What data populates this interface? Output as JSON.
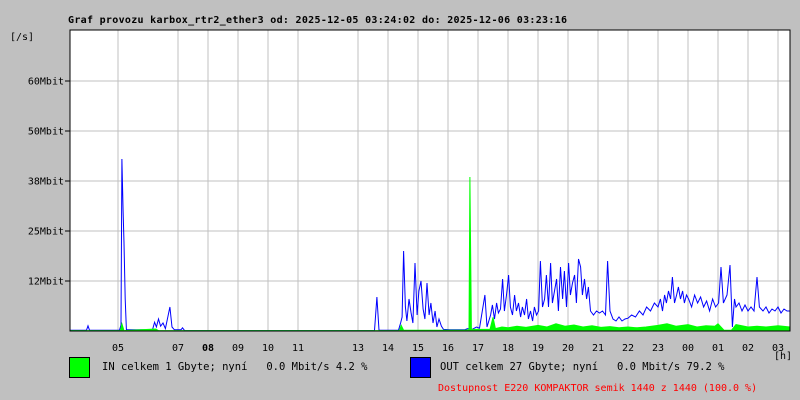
{
  "header": {
    "title": "Graf provozu karbox_rtr2_ether3 od: 2025-12-05 03:24:02 do: 2025-12-06 03:23:16"
  },
  "axes": {
    "y_unit": "[/s]",
    "x_unit": "[h]"
  },
  "legend": {
    "in": {
      "label": "IN celkem 1 Gbyte; nyní   0.0 Mbit/s 4.2 %",
      "color": "#00ff00"
    },
    "out": {
      "label": "OUT celkem 27 Gbyte; nyní   0.0 Mbit/s 79.2 %",
      "color": "#0000ff"
    },
    "availability": {
      "label": "Dostupnost E220 KOMPAKTOR semik 1440 z 1440 (100.0 %)",
      "color": "#ff0000"
    }
  },
  "colors": {
    "background": "#c0c0c0",
    "plot_background": "#ffffff",
    "grid": "#c0c0c0",
    "border": "#000000",
    "in_series": "#00ff00",
    "out_series": "#0000ff",
    "availability_text": "#ff0000",
    "text": "#000000"
  },
  "chart_data": {
    "type": "line",
    "title": "Graf provozu karbox_rtr2_ether3 od: 2025-12-05 03:24:02 do: 2025-12-06 03:23:16",
    "xlabel": "[h]",
    "ylabel": "[/s]",
    "grid": true,
    "x_range_hours": [
      3.4,
      27.39
    ],
    "ylim": [
      0,
      75.25
    ],
    "y_ticks": [
      {
        "label": "12Mbit",
        "mbit": 12.5
      },
      {
        "label": "25Mbit",
        "mbit": 25
      },
      {
        "label": "38Mbit",
        "mbit": 37.5
      },
      {
        "label": "50Mbit",
        "mbit": 50
      },
      {
        "label": "60Mbit",
        "mbit": 62.5
      }
    ],
    "x_ticks": [
      {
        "label": "05",
        "hour": 5
      },
      {
        "label": "07",
        "hour": 7
      },
      {
        "label": "08",
        "hour": 8,
        "bold": true
      },
      {
        "label": "09",
        "hour": 9
      },
      {
        "label": "10",
        "hour": 10
      },
      {
        "label": "11",
        "hour": 11
      },
      {
        "label": "13",
        "hour": 13
      },
      {
        "label": "14",
        "hour": 14
      },
      {
        "label": "15",
        "hour": 15
      },
      {
        "label": "16",
        "hour": 16
      },
      {
        "label": "17",
        "hour": 17
      },
      {
        "label": "18",
        "hour": 18
      },
      {
        "label": "19",
        "hour": 19
      },
      {
        "label": "20",
        "hour": 20
      },
      {
        "label": "21",
        "hour": 21
      },
      {
        "label": "22",
        "hour": 22
      },
      {
        "label": "23",
        "hour": 23
      },
      {
        "label": "00",
        "hour": 24
      },
      {
        "label": "01",
        "hour": 25
      },
      {
        "label": "02",
        "hour": 26
      },
      {
        "label": "03",
        "hour": 27
      }
    ],
    "series": [
      {
        "name": "OUT",
        "color": "#0000ff",
        "style": "line",
        "unit": "Mbit/s",
        "points": [
          [
            3.4,
            0.2
          ],
          [
            3.95,
            0.2
          ],
          [
            4.0,
            1.3
          ],
          [
            4.05,
            0.2
          ],
          [
            5.05,
            0.2
          ],
          [
            5.1,
            1.5
          ],
          [
            5.13,
            43
          ],
          [
            5.17,
            30
          ],
          [
            5.2,
            22
          ],
          [
            5.24,
            8
          ],
          [
            5.28,
            0.3
          ],
          [
            6.15,
            0.3
          ],
          [
            6.22,
            2.2
          ],
          [
            6.28,
            1.0
          ],
          [
            6.35,
            3.0
          ],
          [
            6.42,
            1.2
          ],
          [
            6.5,
            2.0
          ],
          [
            6.58,
            0.6
          ],
          [
            6.73,
            6.0
          ],
          [
            6.8,
            1.0
          ],
          [
            6.88,
            0.3
          ],
          [
            7.1,
            0.3
          ],
          [
            7.15,
            0.8
          ],
          [
            7.22,
            0.1
          ],
          [
            13.55,
            0.1
          ],
          [
            13.63,
            8.5
          ],
          [
            13.7,
            0.2
          ],
          [
            14.35,
            0.2
          ],
          [
            14.42,
            2.0
          ],
          [
            14.47,
            3.5
          ],
          [
            14.52,
            20
          ],
          [
            14.58,
            6.0
          ],
          [
            14.63,
            2.5
          ],
          [
            14.7,
            8.0
          ],
          [
            14.77,
            4.5
          ],
          [
            14.83,
            2.0
          ],
          [
            14.9,
            17
          ],
          [
            14.97,
            4.0
          ],
          [
            15.03,
            10
          ],
          [
            15.1,
            12.5
          ],
          [
            15.17,
            5.5
          ],
          [
            15.23,
            3.0
          ],
          [
            15.3,
            12
          ],
          [
            15.37,
            4.0
          ],
          [
            15.43,
            7.0
          ],
          [
            15.5,
            2.0
          ],
          [
            15.57,
            5.0
          ],
          [
            15.63,
            1.0
          ],
          [
            15.7,
            3.0
          ],
          [
            15.78,
            1.2
          ],
          [
            15.85,
            0.4
          ],
          [
            16.05,
            0.3
          ],
          [
            16.55,
            0.3
          ],
          [
            16.65,
            0.6
          ],
          [
            16.8,
            0.4
          ],
          [
            16.95,
            1.0
          ],
          [
            17.05,
            0.7
          ],
          [
            17.23,
            9.0
          ],
          [
            17.3,
            1.0
          ],
          [
            17.42,
            4.0
          ],
          [
            17.48,
            6.5
          ],
          [
            17.55,
            3.0
          ],
          [
            17.62,
            7.0
          ],
          [
            17.68,
            4.5
          ],
          [
            17.75,
            5.5
          ],
          [
            17.82,
            13
          ],
          [
            17.88,
            5.0
          ],
          [
            17.95,
            9.0
          ],
          [
            18.02,
            14
          ],
          [
            18.08,
            6.0
          ],
          [
            18.15,
            4.0
          ],
          [
            18.22,
            9.0
          ],
          [
            18.28,
            5.0
          ],
          [
            18.35,
            7.0
          ],
          [
            18.42,
            3.5
          ],
          [
            18.48,
            6.0
          ],
          [
            18.55,
            4.0
          ],
          [
            18.62,
            8.0
          ],
          [
            18.68,
            3.0
          ],
          [
            18.75,
            5.0
          ],
          [
            18.82,
            2.5
          ],
          [
            18.88,
            6.0
          ],
          [
            18.95,
            4.0
          ],
          [
            19.02,
            5.0
          ],
          [
            19.08,
            17.5
          ],
          [
            19.15,
            6.0
          ],
          [
            19.22,
            8.0
          ],
          [
            19.28,
            14
          ],
          [
            19.35,
            6.0
          ],
          [
            19.42,
            17
          ],
          [
            19.48,
            7.0
          ],
          [
            19.55,
            10
          ],
          [
            19.62,
            13
          ],
          [
            19.68,
            5.0
          ],
          [
            19.75,
            16
          ],
          [
            19.82,
            8.0
          ],
          [
            19.88,
            15
          ],
          [
            19.95,
            6.0
          ],
          [
            20.02,
            17
          ],
          [
            20.08,
            9.0
          ],
          [
            20.15,
            12
          ],
          [
            20.22,
            14
          ],
          [
            20.28,
            7.0
          ],
          [
            20.35,
            18
          ],
          [
            20.42,
            16
          ],
          [
            20.48,
            9.0
          ],
          [
            20.55,
            13
          ],
          [
            20.62,
            8.0
          ],
          [
            20.68,
            11
          ],
          [
            20.75,
            5.0
          ],
          [
            20.85,
            4.0
          ],
          [
            20.95,
            5.0
          ],
          [
            21.05,
            4.5
          ],
          [
            21.15,
            5.0
          ],
          [
            21.25,
            4.0
          ],
          [
            21.32,
            17.5
          ],
          [
            21.4,
            5.0
          ],
          [
            21.5,
            3.0
          ],
          [
            21.6,
            2.5
          ],
          [
            21.7,
            3.5
          ],
          [
            21.8,
            2.5
          ],
          [
            21.9,
            3.0
          ],
          [
            22.0,
            3.2
          ],
          [
            22.12,
            4.0
          ],
          [
            22.25,
            3.5
          ],
          [
            22.38,
            5.0
          ],
          [
            22.5,
            4.0
          ],
          [
            22.62,
            6.0
          ],
          [
            22.75,
            5.0
          ],
          [
            22.88,
            7.0
          ],
          [
            23.0,
            6.0
          ],
          [
            23.08,
            8.0
          ],
          [
            23.15,
            5.0
          ],
          [
            23.22,
            9.0
          ],
          [
            23.28,
            7.0
          ],
          [
            23.35,
            10
          ],
          [
            23.42,
            8.0
          ],
          [
            23.48,
            13.5
          ],
          [
            23.55,
            7.0
          ],
          [
            23.62,
            9.0
          ],
          [
            23.68,
            11
          ],
          [
            23.75,
            8.0
          ],
          [
            23.82,
            10
          ],
          [
            23.88,
            7.0
          ],
          [
            23.95,
            9.0
          ],
          [
            24.02,
            8.0
          ],
          [
            24.12,
            6.0
          ],
          [
            24.22,
            9.0
          ],
          [
            24.32,
            7.0
          ],
          [
            24.42,
            8.5
          ],
          [
            24.52,
            6.0
          ],
          [
            24.62,
            7.5
          ],
          [
            24.72,
            5.0
          ],
          [
            24.82,
            8.0
          ],
          [
            24.92,
            6.0
          ],
          [
            25.02,
            7.0
          ],
          [
            25.1,
            16
          ],
          [
            25.18,
            7.0
          ],
          [
            25.3,
            9.0
          ],
          [
            25.4,
            16.5
          ],
          [
            25.48,
            1.0
          ],
          [
            25.55,
            8.0
          ],
          [
            25.6,
            6.0
          ],
          [
            25.7,
            7.0
          ],
          [
            25.8,
            5.0
          ],
          [
            25.9,
            6.5
          ],
          [
            26.0,
            5.0
          ],
          [
            26.1,
            6.0
          ],
          [
            26.2,
            5.0
          ],
          [
            26.3,
            13.5
          ],
          [
            26.38,
            6.0
          ],
          [
            26.5,
            5.0
          ],
          [
            26.6,
            6.0
          ],
          [
            26.7,
            4.5
          ],
          [
            26.8,
            5.5
          ],
          [
            26.9,
            5.0
          ],
          [
            27.0,
            6.0
          ],
          [
            27.1,
            4.5
          ],
          [
            27.2,
            5.5
          ],
          [
            27.3,
            5.0
          ],
          [
            27.39,
            5.0
          ]
        ]
      },
      {
        "name": "IN",
        "color": "#00ff00",
        "style": "area",
        "unit": "Mbit/s",
        "points": [
          [
            3.4,
            0.1
          ],
          [
            5.08,
            0.1
          ],
          [
            5.13,
            1.8
          ],
          [
            5.2,
            0.1
          ],
          [
            6.25,
            0.5
          ],
          [
            6.35,
            0.1
          ],
          [
            13.0,
            0.1
          ],
          [
            14.38,
            0.1
          ],
          [
            14.44,
            1.4
          ],
          [
            14.52,
            0.2
          ],
          [
            16.55,
            0.2
          ],
          [
            16.7,
            0.3
          ],
          [
            16.73,
            38.5
          ],
          [
            16.78,
            0.4
          ],
          [
            17.4,
            0.4
          ],
          [
            17.5,
            3.4
          ],
          [
            17.58,
            0.6
          ],
          [
            17.8,
            1.0
          ],
          [
            18.0,
            0.8
          ],
          [
            18.3,
            1.2
          ],
          [
            18.6,
            0.9
          ],
          [
            19.0,
            1.4
          ],
          [
            19.3,
            1.0
          ],
          [
            19.6,
            1.8
          ],
          [
            19.9,
            1.2
          ],
          [
            20.2,
            1.5
          ],
          [
            20.5,
            1.0
          ],
          [
            20.8,
            1.3
          ],
          [
            21.1,
            0.9
          ],
          [
            21.4,
            1.1
          ],
          [
            21.7,
            0.8
          ],
          [
            22.0,
            1.0
          ],
          [
            22.3,
            0.8
          ],
          [
            22.6,
            1.0
          ],
          [
            23.0,
            1.4
          ],
          [
            23.3,
            1.8
          ],
          [
            23.6,
            1.2
          ],
          [
            24.0,
            1.6
          ],
          [
            24.3,
            1.0
          ],
          [
            24.6,
            1.3
          ],
          [
            24.9,
            1.2
          ],
          [
            25.0,
            1.8
          ],
          [
            25.2,
            0.2
          ],
          [
            25.45,
            0.2
          ],
          [
            25.6,
            1.6
          ],
          [
            26.0,
            1.0
          ],
          [
            26.3,
            1.2
          ],
          [
            26.6,
            1.0
          ],
          [
            27.0,
            1.3
          ],
          [
            27.39,
            1.0
          ]
        ]
      }
    ]
  }
}
